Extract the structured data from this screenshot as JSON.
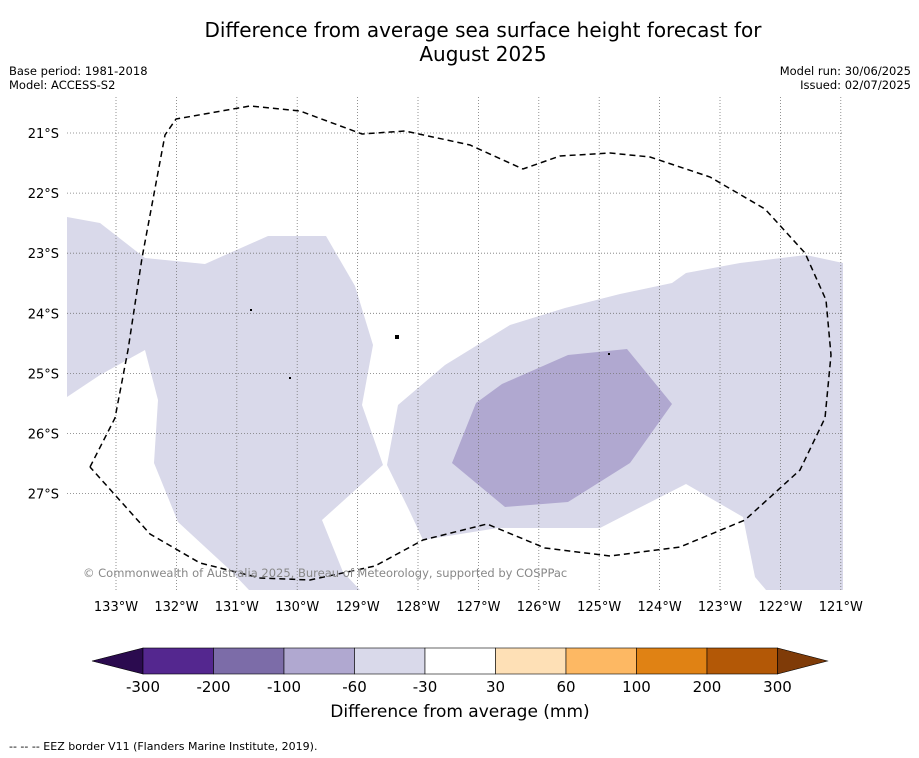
{
  "title_line1": "Difference from average sea surface height forecast for",
  "title_line2": "August 2025",
  "base_period": "Base period: 1981-2018",
  "model": "Model: ACCESS-S2",
  "model_run": "Model run: 30/06/2025",
  "issued": "Issued: 02/07/2025",
  "copyright": "© Commonwealth of Australia 2025, Bureau of Meteorology, supported by COSPPac",
  "lat_labels": [
    "21°S",
    "22°S",
    "23°S",
    "24°S",
    "25°S",
    "26°S",
    "27°S"
  ],
  "lon_labels": [
    "133°W",
    "132°W",
    "131°W",
    "130°W",
    "129°W",
    "128°W",
    "127°W",
    "126°W",
    "125°W",
    "124°W",
    "123°W",
    "122°W",
    "121°W"
  ],
  "colorbar": {
    "title": "Difference from average (mm)",
    "ticks": [
      "-300",
      "-200",
      "-100",
      "-60",
      "-30",
      "30",
      "60",
      "100",
      "200",
      "300"
    ],
    "colors": [
      "#2b0b4f",
      "#54278f",
      "#7c6ca8",
      "#b0a8d0",
      "#d9d9ea",
      "#ffffff",
      "#fee0b6",
      "#fdb863",
      "#e08214",
      "#b35806",
      "#7f3b08"
    ]
  },
  "colors": {
    "band_60_30": "#d9d9ea",
    "band_100_60": "#b0a8d0"
  },
  "footer": "--  --  -- EEZ border V11 (Flanders Marine Institute, 2019)."
}
